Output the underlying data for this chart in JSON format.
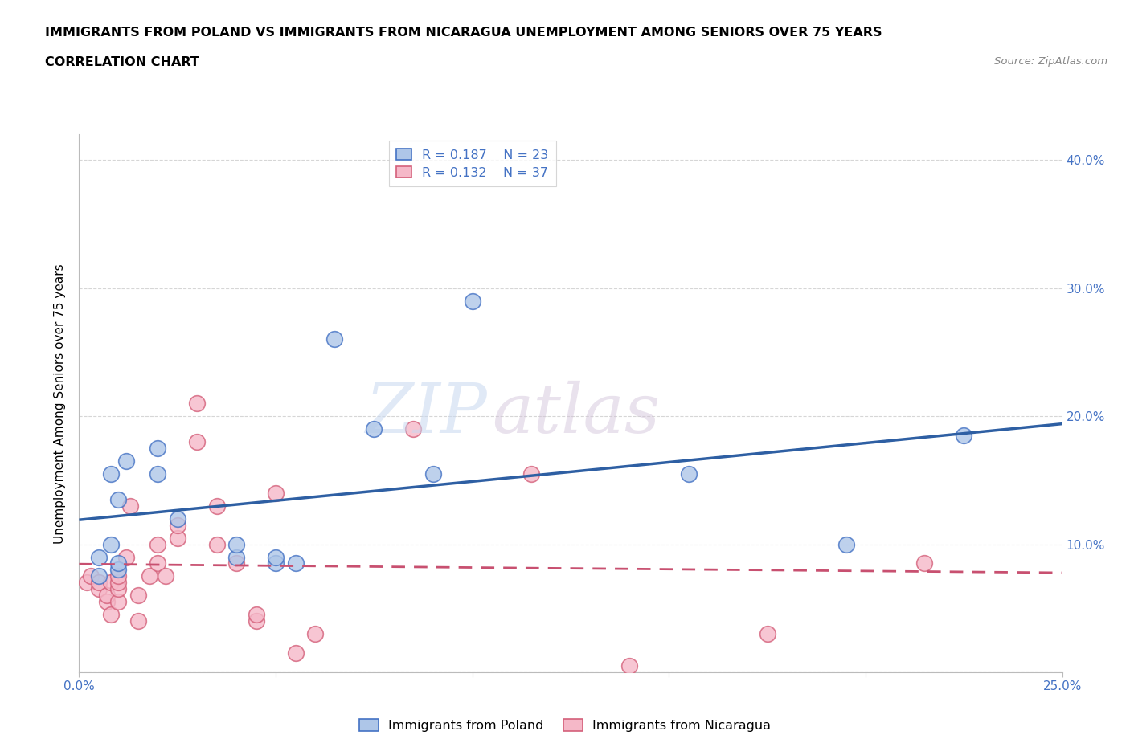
{
  "title_line1": "IMMIGRANTS FROM POLAND VS IMMIGRANTS FROM NICARAGUA UNEMPLOYMENT AMONG SENIORS OVER 75 YEARS",
  "title_line2": "CORRELATION CHART",
  "source_text": "Source: ZipAtlas.com",
  "ylabel": "Unemployment Among Seniors over 75 years",
  "xlim": [
    0.0,
    0.25
  ],
  "ylim": [
    0.0,
    0.42
  ],
  "yticks": [
    0.0,
    0.1,
    0.2,
    0.3,
    0.4
  ],
  "yticklabels": [
    "",
    "10.0%",
    "20.0%",
    "30.0%",
    "40.0%"
  ],
  "poland_color": "#aec6e8",
  "poland_edge_color": "#4472c4",
  "nicaragua_color": "#f5b8c8",
  "nicaragua_edge_color": "#d4607a",
  "poland_R": 0.187,
  "poland_N": 23,
  "nicaragua_R": 0.132,
  "nicaragua_N": 37,
  "poland_line_color": "#2e5fa3",
  "nicaragua_line_color": "#c85070",
  "watermark_zip": "ZIP",
  "watermark_atlas": "atlas",
  "poland_x": [
    0.005,
    0.005,
    0.008,
    0.008,
    0.01,
    0.01,
    0.01,
    0.012,
    0.02,
    0.02,
    0.025,
    0.04,
    0.04,
    0.05,
    0.05,
    0.055,
    0.065,
    0.075,
    0.09,
    0.1,
    0.155,
    0.195,
    0.225
  ],
  "poland_y": [
    0.075,
    0.09,
    0.1,
    0.155,
    0.08,
    0.085,
    0.135,
    0.165,
    0.155,
    0.175,
    0.12,
    0.09,
    0.1,
    0.085,
    0.09,
    0.085,
    0.26,
    0.19,
    0.155,
    0.29,
    0.155,
    0.1,
    0.185
  ],
  "nicaragua_x": [
    0.002,
    0.003,
    0.005,
    0.005,
    0.007,
    0.007,
    0.008,
    0.008,
    0.01,
    0.01,
    0.01,
    0.01,
    0.012,
    0.013,
    0.015,
    0.015,
    0.018,
    0.02,
    0.02,
    0.022,
    0.025,
    0.025,
    0.03,
    0.03,
    0.035,
    0.035,
    0.04,
    0.045,
    0.045,
    0.05,
    0.055,
    0.06,
    0.085,
    0.115,
    0.14,
    0.175,
    0.215
  ],
  "nicaragua_y": [
    0.07,
    0.075,
    0.065,
    0.07,
    0.055,
    0.06,
    0.045,
    0.07,
    0.055,
    0.065,
    0.07,
    0.075,
    0.09,
    0.13,
    0.04,
    0.06,
    0.075,
    0.085,
    0.1,
    0.075,
    0.105,
    0.115,
    0.18,
    0.21,
    0.1,
    0.13,
    0.085,
    0.04,
    0.045,
    0.14,
    0.015,
    0.03,
    0.19,
    0.155,
    0.005,
    0.03,
    0.085
  ]
}
